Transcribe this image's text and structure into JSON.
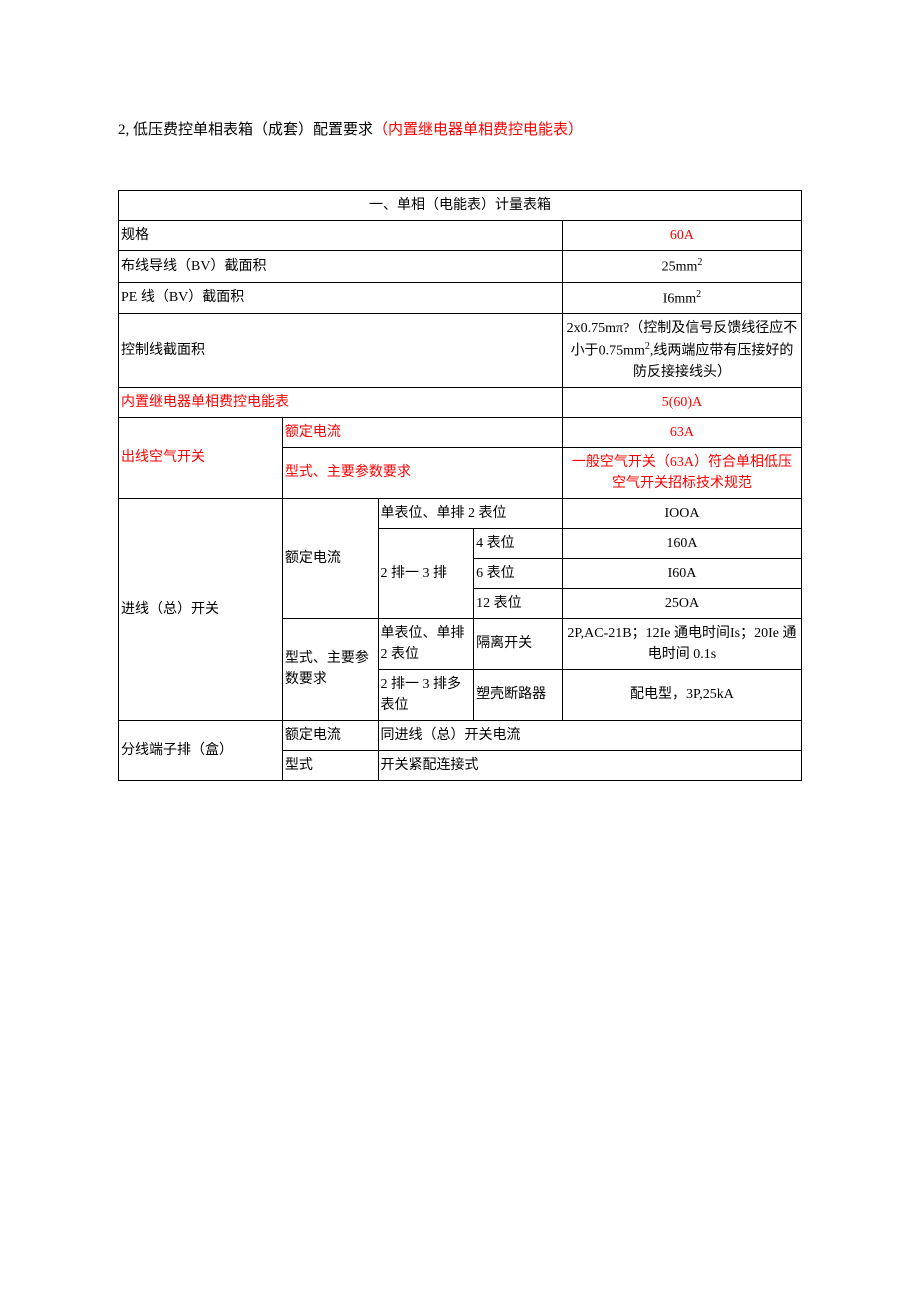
{
  "heading": {
    "prefix": "2, 低压费控单相表箱（成套）配置要求",
    "red_suffix": "（内置继电器单相费控电能表）"
  },
  "table": {
    "title": "一、单相（电能表）计量表箱",
    "rows": {
      "spec_label": "规格",
      "spec_value": "60A",
      "wire_bv_label": "布线导线（BV）截面积",
      "wire_bv_value": "25mm",
      "pe_bv_label": "PE 线（BV）截面积",
      "pe_bv_value": "I6mm",
      "ctrl_line_label": "控制线截面积",
      "ctrl_line_value_a": "2x0.75mπ?（控制及信号反馈线径应不小于",
      "ctrl_line_value_b": "0.75mm",
      "ctrl_line_value_c": ",线两端应带有压接好的防反接接线头）",
      "internal_relay_label": "内置继电器单相费控电能表",
      "internal_relay_value": "5(60)A",
      "out_switch_label": "出线空气开关",
      "rated_current_label": "额定电流",
      "out_rated_value": "63A",
      "type_param_label": "型式、主要参数要求",
      "out_type_value": "一般空气开关（63A）符合单相低压空气开关招标技术规范",
      "in_switch_label": "进线（总）开关",
      "single_pos_label": "单表位、单排 2 表位",
      "single_pos_value": "IOOA",
      "two_three_row_label": "2 排一 3 排",
      "pos4_label": "4 表位",
      "pos4_value": "160A",
      "pos6_label": "6 表位",
      "pos6_value": "I60A",
      "pos12_label": "12 表位",
      "pos12_value": "25OA",
      "single_pos2_label": "单表位、单排 2 表位",
      "isolate_switch_label": "隔离开关",
      "isolate_switch_value": "2P,AC-21B；12Ie 通电时间Is；20Ie 通电时间 0.1s",
      "multi_pos_label": "2 排一 3 排多表位",
      "mccb_label": "塑壳断路器",
      "mccb_value": "配电型，3P,25kA",
      "terminal_label": "分线端子排（盒）",
      "terminal_rated_label": "额定电流",
      "terminal_rated_value": "同进线（总）开关电流",
      "terminal_type_label": "型式",
      "terminal_type_value": "开关紧配连接式"
    }
  }
}
